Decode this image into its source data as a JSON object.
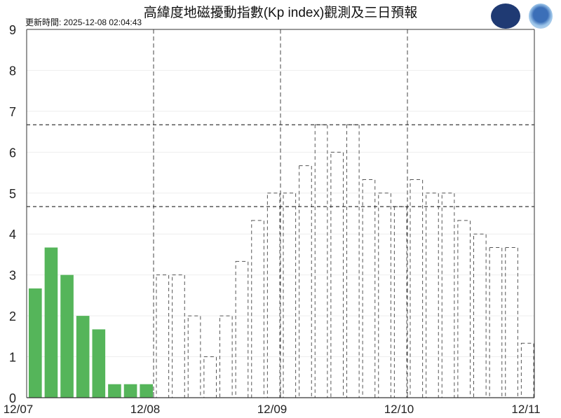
{
  "title": "高緯度地磁擾動指數(Kp index)觀測及三日預報",
  "updated": "更新時間: 2025-12-08 02:04:43",
  "logos": [
    "CWA",
    "NOAA"
  ],
  "chart_data": {
    "type": "bar",
    "title": "高緯度地磁擾動指數(Kp index)觀測及三日預報",
    "ylim": [
      0,
      9
    ],
    "yticks": [
      "0",
      "1",
      "2",
      "3",
      "4",
      "5",
      "6",
      "7",
      "8",
      "9"
    ],
    "xticks": [
      "12/07",
      "12/08",
      "12/09",
      "12/10",
      "12/11"
    ],
    "grid": true,
    "interval_hours": 3,
    "reference_lines": [
      6.67,
      4.67
    ],
    "colors": {
      "observed": "#55b55a",
      "forecast_outline": "#555555"
    },
    "series": [
      {
        "kind": "observed",
        "start": "12/07",
        "values": [
          2.67,
          3.67,
          3,
          2,
          1.67,
          0.33,
          0.33,
          0.33
        ]
      },
      {
        "kind": "forecast",
        "start": "12/08",
        "values": [
          3,
          3,
          2,
          1,
          2,
          3.33,
          4.33,
          5,
          5,
          5.67,
          6.67,
          6,
          6.67,
          5.33,
          5,
          4.67,
          5.33,
          5,
          5,
          4.33,
          4,
          3.67,
          3.67,
          1.33
        ]
      }
    ]
  }
}
